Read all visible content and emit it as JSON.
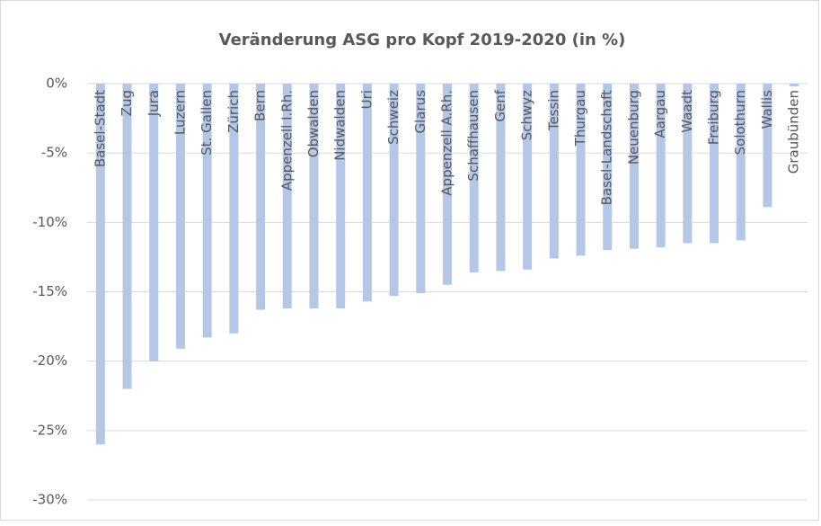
{
  "chart_data": {
    "type": "bar",
    "title": "Veränderung ASG pro Kopf 2019-2020 (in %)",
    "categories": [
      "Basel-Stadt",
      "Zug",
      "Jura",
      "Luzern",
      "St. Gallen",
      "Zürich",
      "Bern",
      "Appenzell I.Rh.",
      "Obwalden",
      "Nidwalden",
      "Uri",
      "Schweiz",
      "Glarus",
      "Appenzell A.Rh.",
      "Schaffhausen",
      "Genf",
      "Schwyz",
      "Tessin",
      "Thurgau",
      "Basel-Landschaft",
      "Neuenburg",
      "Aargau",
      "Waadt",
      "Freiburg",
      "Solothurn",
      "Wallis",
      "Graubünden"
    ],
    "values": [
      -26.0,
      -22.0,
      -20.0,
      -19.1,
      -18.3,
      -18.0,
      -16.3,
      -16.2,
      -16.2,
      -16.2,
      -15.7,
      -15.3,
      -15.1,
      -14.5,
      -13.6,
      -13.5,
      -13.4,
      -12.6,
      -12.4,
      -12.0,
      -11.9,
      -11.8,
      -11.5,
      -11.5,
      -11.3,
      -8.9,
      -0.2
    ],
    "color": "#b4c7e7",
    "ylim": [
      -30,
      0
    ],
    "yticks": [
      {
        "value": 0,
        "label": "0%"
      },
      {
        "value": -5,
        "label": "-5%"
      },
      {
        "value": -10,
        "label": "-10%"
      },
      {
        "value": -15,
        "label": "-15%"
      },
      {
        "value": -20,
        "label": "-20%"
      },
      {
        "value": -25,
        "label": "-25%"
      },
      {
        "value": -30,
        "label": "-30%"
      }
    ],
    "grid": true
  }
}
